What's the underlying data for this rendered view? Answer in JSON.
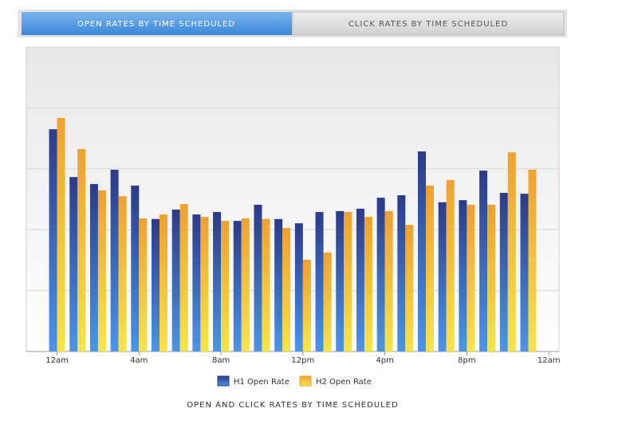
{
  "tabs": [
    "OPEN RATES BY TIME SCHEDULED",
    "CLICK RATES BY TIME SCHEDULED"
  ],
  "chart_data": {
    "type": "bar",
    "title": "OPEN AND CLICK RATES BY TIME SCHEDULED",
    "x": [
      0,
      1,
      2,
      3,
      4,
      5,
      6,
      7,
      8,
      9,
      10,
      11,
      12,
      13,
      14,
      15,
      16,
      17,
      18,
      19,
      20,
      21,
      22,
      23
    ],
    "xlim": [
      -1.5,
      24.5
    ],
    "xticks": [
      {
        "value": 0,
        "label": "12am"
      },
      {
        "value": 4,
        "label": "4am"
      },
      {
        "value": 8,
        "label": "8am"
      },
      {
        "value": 12,
        "label": "12pm"
      },
      {
        "value": 16,
        "label": "4pm"
      },
      {
        "value": 20,
        "label": "8pm"
      },
      {
        "value": 24,
        "label": "12am"
      }
    ],
    "ylim": [
      0,
      100
    ],
    "yticks": [
      0,
      20,
      40,
      60,
      80,
      100
    ],
    "grid": true,
    "series": [
      {
        "name": "H1 Open Rate",
        "color": "#2c3a8a",
        "values": [
          73.0,
          57.3,
          55.0,
          59.7,
          54.5,
          43.5,
          46.6,
          45.0,
          45.8,
          42.9,
          48.2,
          43.5,
          42.1,
          45.8,
          46.1,
          46.9,
          50.5,
          51.3,
          65.7,
          49.0,
          49.7,
          59.4,
          52.1,
          51.8
        ]
      },
      {
        "name": "H2 Open Rate",
        "color": "#f0a030",
        "values": [
          76.7,
          66.5,
          52.9,
          51.0,
          43.7,
          45.0,
          48.4,
          44.2,
          42.9,
          43.7,
          43.5,
          40.6,
          30.1,
          32.5,
          45.8,
          44.2,
          46.1,
          41.6,
          54.5,
          56.3,
          48.2,
          48.2,
          65.4,
          59.7
        ]
      }
    ]
  }
}
